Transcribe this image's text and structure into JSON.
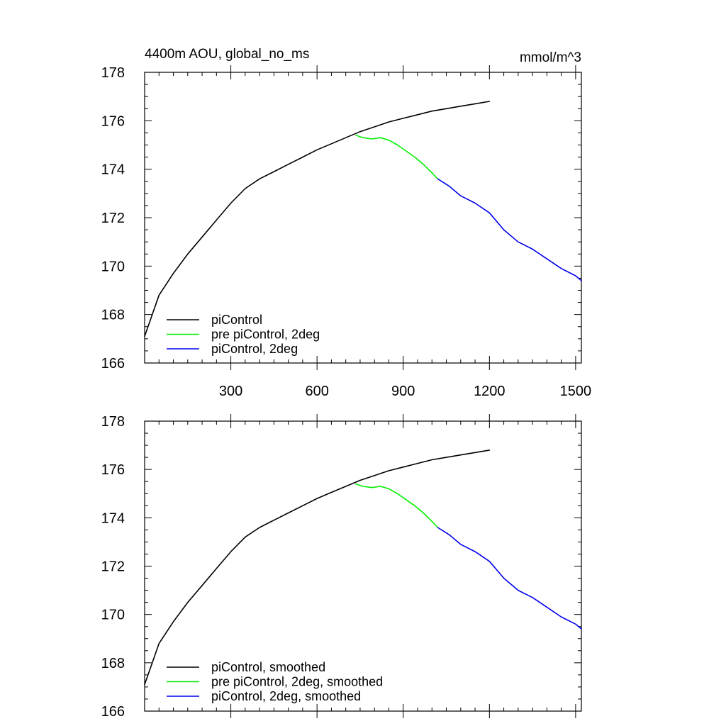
{
  "chart_data": [
    {
      "type": "line",
      "title_left": "4400m AOU, global_no_ms",
      "title_right": "mmol/m^3",
      "xlabel": "",
      "ylabel": "",
      "xlim": [
        0,
        1520
      ],
      "ylim": [
        166,
        178
      ],
      "x_ticks": [
        300,
        600,
        900,
        1200,
        1500
      ],
      "x_tick_labels": [
        "300",
        "600",
        "900",
        "1200",
        "1500"
      ],
      "show_x_tick_labels": true,
      "y_ticks": [
        166,
        168,
        170,
        172,
        174,
        176,
        178
      ],
      "y_tick_labels": [
        "166",
        "168",
        "170",
        "172",
        "174",
        "176",
        "178"
      ],
      "grid": false,
      "legend_position": "bottom-left",
      "series": [
        {
          "name": "piControl",
          "color": "#000000",
          "x": [
            0,
            50,
            100,
            150,
            200,
            250,
            300,
            350,
            400,
            450,
            500,
            550,
            600,
            650,
            700,
            750,
            800,
            850,
            900,
            950,
            1000,
            1050,
            1100,
            1150,
            1200
          ],
          "y": [
            167.1,
            168.8,
            169.7,
            170.5,
            171.2,
            171.9,
            172.6,
            173.2,
            173.6,
            173.9,
            174.2,
            174.5,
            174.8,
            175.05,
            175.3,
            175.55,
            175.75,
            175.95,
            176.1,
            176.25,
            176.4,
            176.5,
            176.6,
            176.7,
            176.8
          ]
        },
        {
          "name": "pre piControl, 2deg",
          "color": "#00ee00",
          "x": [
            735,
            760,
            790,
            820,
            850,
            880,
            910,
            940,
            970,
            1000,
            1020
          ],
          "y": [
            175.4,
            175.3,
            175.25,
            175.3,
            175.2,
            175.0,
            174.75,
            174.5,
            174.2,
            173.85,
            173.6
          ]
        },
        {
          "name": "piControl, 2deg",
          "color": "#0000ee",
          "x": [
            1020,
            1060,
            1100,
            1150,
            1200,
            1250,
            1300,
            1350,
            1400,
            1450,
            1500,
            1520
          ],
          "y": [
            173.6,
            173.3,
            172.9,
            172.6,
            172.2,
            171.5,
            171.0,
            170.7,
            170.3,
            169.9,
            169.6,
            169.4
          ]
        }
      ]
    },
    {
      "type": "line",
      "title_left": "",
      "title_right": "",
      "xlabel": "",
      "ylabel": "",
      "xlim": [
        0,
        1520
      ],
      "ylim": [
        166,
        178
      ],
      "x_ticks": [
        300,
        600,
        900,
        1200,
        1500
      ],
      "x_tick_labels": [
        "",
        "",
        "",
        "",
        ""
      ],
      "show_x_tick_labels": false,
      "y_ticks": [
        166,
        168,
        170,
        172,
        174,
        176,
        178
      ],
      "y_tick_labels": [
        "166",
        "168",
        "170",
        "172",
        "174",
        "176",
        "178"
      ],
      "grid": false,
      "legend_position": "bottom-left",
      "series": [
        {
          "name": "piControl, smoothed",
          "color": "#000000",
          "x": [
            0,
            50,
            100,
            150,
            200,
            250,
            300,
            350,
            400,
            450,
            500,
            550,
            600,
            650,
            700,
            750,
            800,
            850,
            900,
            950,
            1000,
            1050,
            1100,
            1150,
            1200
          ],
          "y": [
            167.1,
            168.8,
            169.7,
            170.5,
            171.2,
            171.9,
            172.6,
            173.2,
            173.6,
            173.9,
            174.2,
            174.5,
            174.8,
            175.05,
            175.3,
            175.55,
            175.75,
            175.95,
            176.1,
            176.25,
            176.4,
            176.5,
            176.6,
            176.7,
            176.8
          ]
        },
        {
          "name": "pre piControl, 2deg, smoothed",
          "color": "#00ee00",
          "x": [
            735,
            760,
            790,
            820,
            850,
            880,
            910,
            940,
            970,
            1000,
            1020
          ],
          "y": [
            175.4,
            175.3,
            175.25,
            175.3,
            175.2,
            175.0,
            174.75,
            174.5,
            174.2,
            173.85,
            173.6
          ]
        },
        {
          "name": "piControl, 2deg, smoothed",
          "color": "#0000ee",
          "x": [
            1020,
            1060,
            1100,
            1150,
            1200,
            1250,
            1300,
            1350,
            1400,
            1450,
            1500,
            1520
          ],
          "y": [
            173.6,
            173.3,
            172.9,
            172.6,
            172.2,
            171.5,
            171.0,
            170.7,
            170.3,
            169.9,
            169.6,
            169.4
          ]
        }
      ]
    }
  ]
}
